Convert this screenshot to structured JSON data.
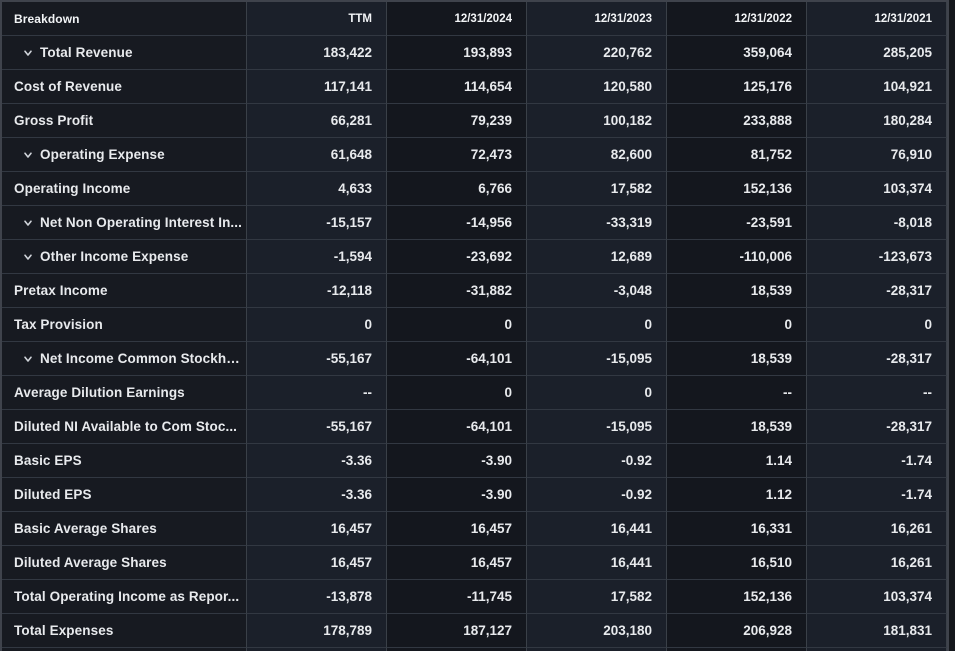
{
  "colors": {
    "frame_border": "#3f434c",
    "page_bg": "#14171c",
    "label_col_bg": "#171a21",
    "dark_col_bg": "#14171e",
    "light_col_bg": "#1b202a",
    "header_text": "#f2f4f6",
    "cell_text": "#e8eaed"
  },
  "table": {
    "columns": [
      {
        "id": "breakdown",
        "label": "Breakdown",
        "align": "left"
      },
      {
        "id": "ttm",
        "label": "TTM",
        "align": "right",
        "stripe": "light"
      },
      {
        "id": "12-31-2024",
        "label": "12/31/2024",
        "align": "right",
        "stripe": "dark"
      },
      {
        "id": "12-31-2023",
        "label": "12/31/2023",
        "align": "right",
        "stripe": "light"
      },
      {
        "id": "12-31-2022",
        "label": "12/31/2022",
        "align": "right",
        "stripe": "dark"
      },
      {
        "id": "12-31-2021",
        "label": "12/31/2021",
        "align": "right",
        "stripe": "light"
      }
    ],
    "rows": [
      {
        "label": "Total Revenue",
        "expandable": true,
        "values": [
          "183,422",
          "193,893",
          "220,762",
          "359,064",
          "285,205"
        ]
      },
      {
        "label": "Cost of Revenue",
        "expandable": false,
        "values": [
          "117,141",
          "114,654",
          "120,580",
          "125,176",
          "104,921"
        ]
      },
      {
        "label": "Gross Profit",
        "expandable": false,
        "values": [
          "66,281",
          "79,239",
          "100,182",
          "233,888",
          "180,284"
        ]
      },
      {
        "label": "Operating Expense",
        "expandable": true,
        "values": [
          "61,648",
          "72,473",
          "82,600",
          "81,752",
          "76,910"
        ]
      },
      {
        "label": "Operating Income",
        "expandable": false,
        "values": [
          "4,633",
          "6,766",
          "17,582",
          "152,136",
          "103,374"
        ]
      },
      {
        "label": "Net Non Operating Interest In...",
        "expandable": true,
        "values": [
          "-15,157",
          "-14,956",
          "-33,319",
          "-23,591",
          "-8,018"
        ]
      },
      {
        "label": "Other Income Expense",
        "expandable": true,
        "values": [
          "-1,594",
          "-23,692",
          "12,689",
          "-110,006",
          "-123,673"
        ]
      },
      {
        "label": "Pretax Income",
        "expandable": false,
        "values": [
          "-12,118",
          "-31,882",
          "-3,048",
          "18,539",
          "-28,317"
        ]
      },
      {
        "label": "Tax Provision",
        "expandable": false,
        "values": [
          "0",
          "0",
          "0",
          "0",
          "0"
        ]
      },
      {
        "label": "Net Income Common Stockho...",
        "expandable": true,
        "values": [
          "-55,167",
          "-64,101",
          "-15,095",
          "18,539",
          "-28,317"
        ]
      },
      {
        "label": "Average Dilution Earnings",
        "expandable": false,
        "values": [
          "--",
          "0",
          "0",
          "--",
          "--"
        ]
      },
      {
        "label": "Diluted NI Available to Com Stoc...",
        "expandable": false,
        "values": [
          "-55,167",
          "-64,101",
          "-15,095",
          "18,539",
          "-28,317"
        ]
      },
      {
        "label": "Basic EPS",
        "expandable": false,
        "values": [
          "-3.36",
          "-3.90",
          "-0.92",
          "1.14",
          "-1.74"
        ]
      },
      {
        "label": "Diluted EPS",
        "expandable": false,
        "values": [
          "-3.36",
          "-3.90",
          "-0.92",
          "1.12",
          "-1.74"
        ]
      },
      {
        "label": "Basic Average Shares",
        "expandable": false,
        "values": [
          "16,457",
          "16,457",
          "16,441",
          "16,331",
          "16,261"
        ]
      },
      {
        "label": "Diluted Average Shares",
        "expandable": false,
        "values": [
          "16,457",
          "16,457",
          "16,441",
          "16,510",
          "16,261"
        ]
      },
      {
        "label": "Total Operating Income as Repor...",
        "expandable": false,
        "values": [
          "-13,878",
          "-11,745",
          "17,582",
          "152,136",
          "103,374"
        ]
      },
      {
        "label": "Total Expenses",
        "expandable": false,
        "values": [
          "178,789",
          "187,127",
          "203,180",
          "206,928",
          "181,831"
        ]
      }
    ],
    "icons": {
      "expand": "chevron-down-icon"
    }
  }
}
